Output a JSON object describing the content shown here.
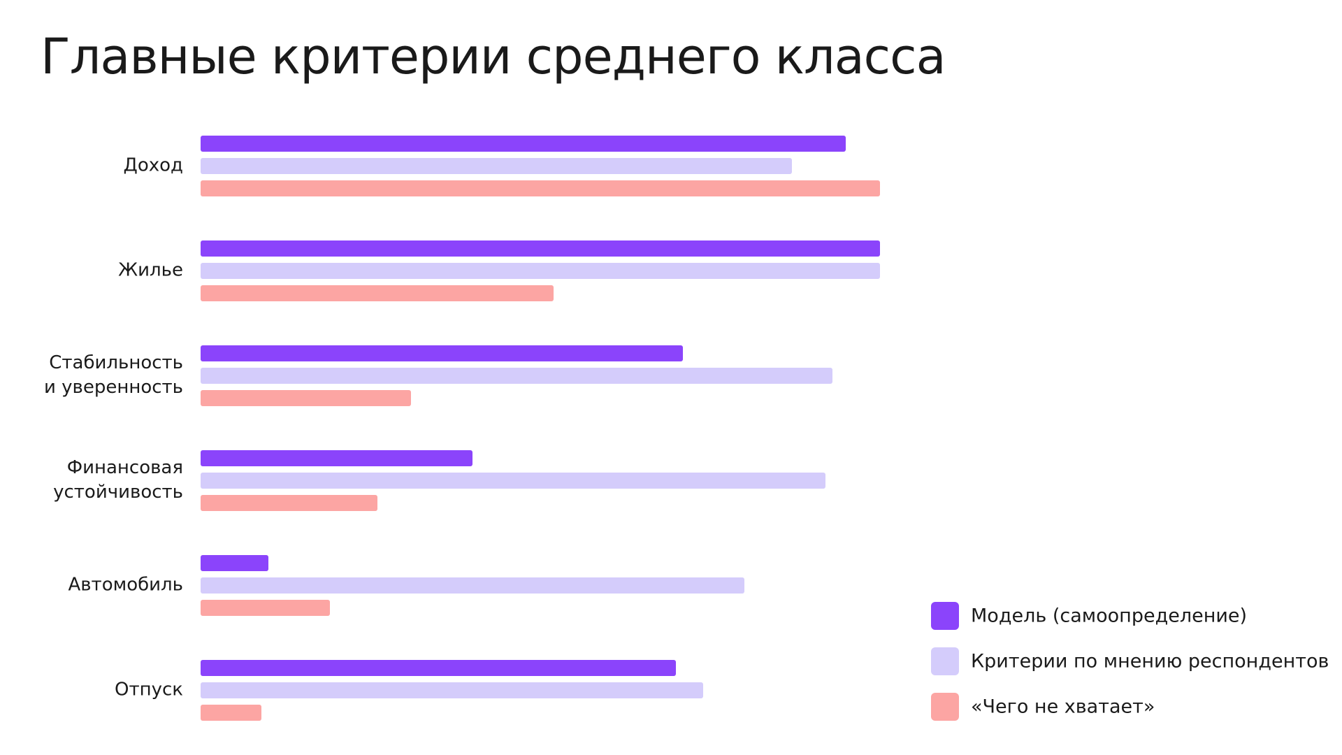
{
  "chart_data": {
    "type": "bar",
    "orientation": "horizontal",
    "title": "Главные критерии среднего класса",
    "categories": [
      "Доход",
      "Жилье",
      "Стабильность и уверенность",
      "Финансовая устойчивость",
      "Автомобиль",
      "Отпуск"
    ],
    "series": [
      {
        "name": "Модель (самоопределение)",
        "color": "#8b44fb",
        "values": [
          95,
          100,
          71,
          40,
          10,
          70
        ]
      },
      {
        "name": "Критерии по мнению респондентов",
        "color": "#d4ccfb",
        "values": [
          87,
          100,
          93,
          92,
          80,
          74
        ]
      },
      {
        "name": "«Чего не хватает»",
        "color": "#fca5a3",
        "values": [
          100,
          52,
          31,
          26,
          19,
          9
        ]
      }
    ],
    "xlim": [
      0,
      100
    ],
    "legend": "bottom-right"
  }
}
